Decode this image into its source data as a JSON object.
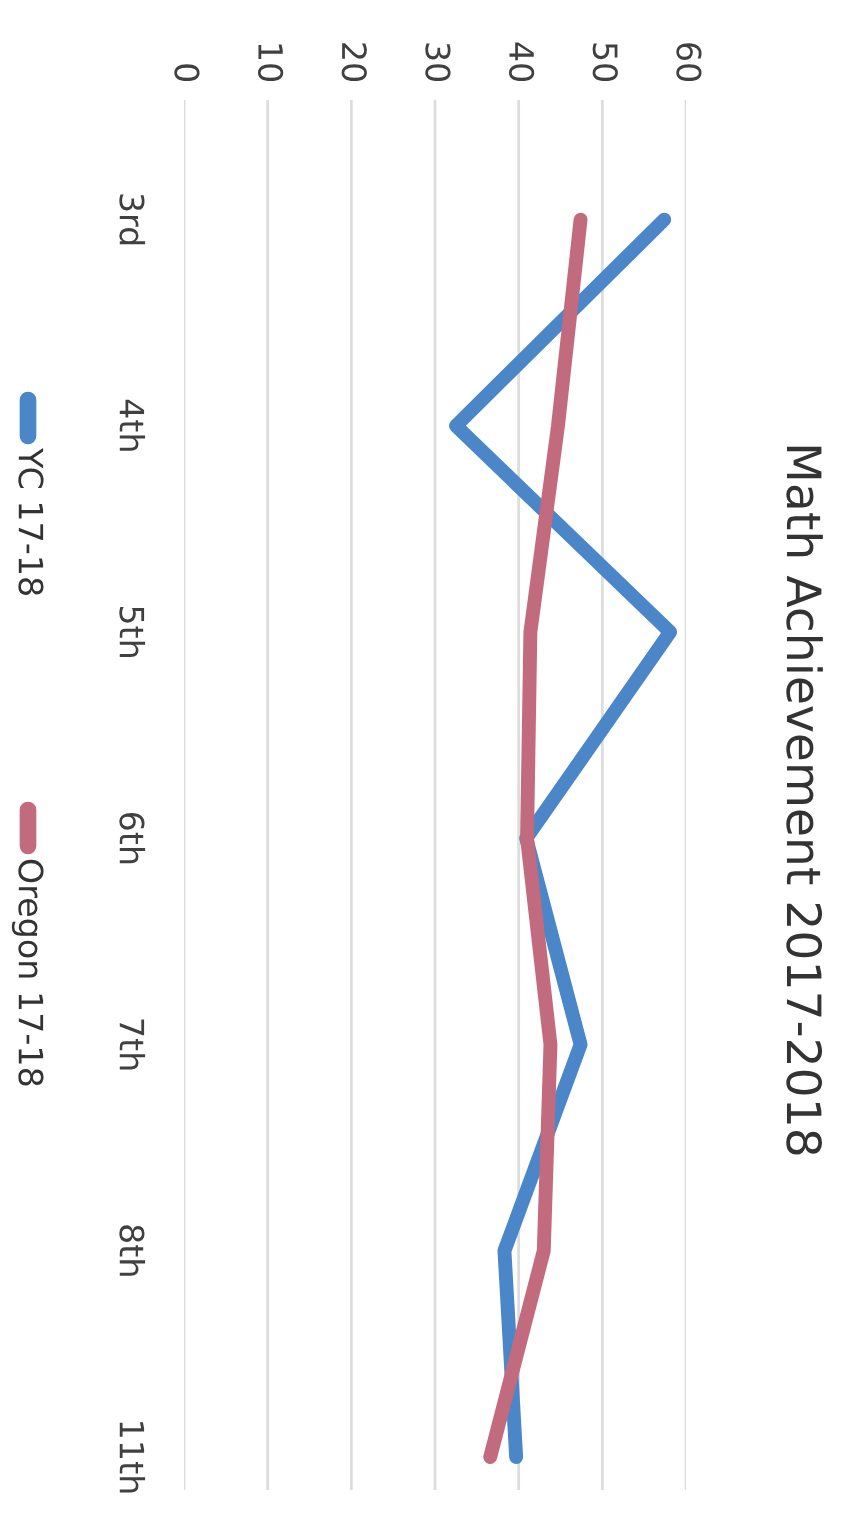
{
  "chart_data": {
    "type": "line",
    "title": "Math Achievement 2017-2018",
    "categories": [
      "3rd",
      "4th",
      "5th",
      "6th",
      "7th",
      "8th",
      "11th"
    ],
    "series": [
      {
        "name": "YC 17-18",
        "color": "#4a86c8",
        "values": [
          57.4,
          32.5,
          58.1,
          40.9,
          47.4,
          38.3,
          39.7
        ]
      },
      {
        "name": "Oregon 17-18",
        "color": "#c26b7e",
        "values": [
          47.4,
          44.7,
          41.4,
          41,
          43.8,
          43,
          36.6
        ]
      }
    ],
    "orientation": "horizontal",
    "xlim": [
      0,
      60
    ],
    "xticks": [
      0,
      10,
      20,
      30,
      40,
      50,
      60
    ],
    "grid": "x",
    "legend": "left",
    "marker": "none",
    "line_style": "solid"
  }
}
